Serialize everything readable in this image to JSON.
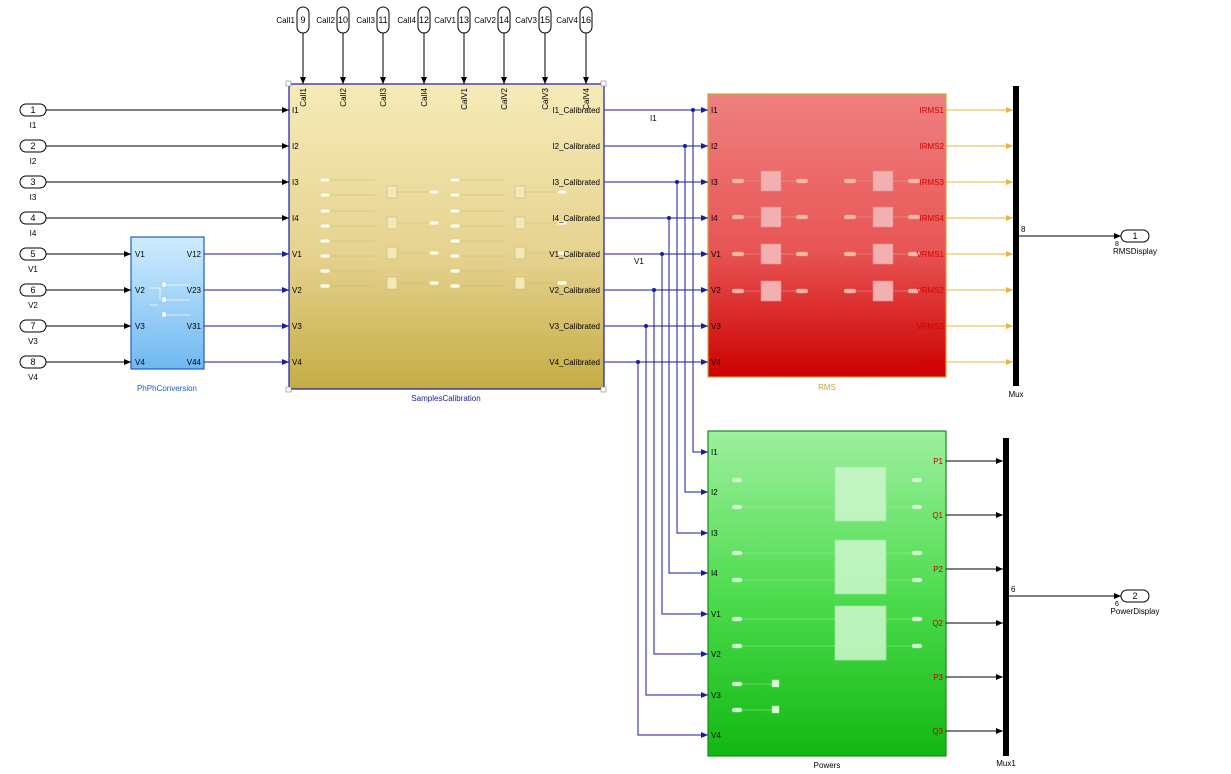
{
  "inports_left": [
    {
      "num": "1",
      "label": "I1"
    },
    {
      "num": "2",
      "label": "I2"
    },
    {
      "num": "3",
      "label": "I3"
    },
    {
      "num": "4",
      "label": "I4"
    },
    {
      "num": "5",
      "label": "V1"
    },
    {
      "num": "6",
      "label": "V2"
    },
    {
      "num": "7",
      "label": "V3"
    },
    {
      "num": "8",
      "label": "V4"
    }
  ],
  "inports_top": [
    {
      "num": "9",
      "label": "CalI1"
    },
    {
      "num": "10",
      "label": "CalI2"
    },
    {
      "num": "11",
      "label": "CalI3"
    },
    {
      "num": "12",
      "label": "CalI4"
    },
    {
      "num": "13",
      "label": "CalV1"
    },
    {
      "num": "14",
      "label": "CalV2"
    },
    {
      "num": "15",
      "label": "CalV3"
    },
    {
      "num": "16",
      "label": "CalV4"
    }
  ],
  "phph": {
    "name": "PhPhConversion",
    "inputs": [
      "V1",
      "V2",
      "V3",
      "V4"
    ],
    "outputs": [
      "V12",
      "V23",
      "V31",
      "V44"
    ]
  },
  "calib": {
    "name": "SamplesCalibration",
    "top_inputs": [
      "CalI1",
      "CalI2",
      "CalI3",
      "CalI4",
      "CalV1",
      "CalV2",
      "CalV3",
      "CalV4"
    ],
    "inputs": [
      "I1",
      "I2",
      "I3",
      "I4",
      "V1",
      "V2",
      "V3",
      "V4"
    ],
    "outputs": [
      "I1_Calibrated",
      "I2_Calibrated",
      "I3_Calibrated",
      "I4_Calibrated",
      "V1_Calibrated",
      "V2_Calibrated",
      "V3_Calibrated",
      "V4_Calibrated"
    ]
  },
  "rms": {
    "name": "RMS",
    "inputs": [
      "I1",
      "I2",
      "I3",
      "I4",
      "V1",
      "V2",
      "V3",
      "V4"
    ],
    "outputs": [
      "IRMS1",
      "IRMS2",
      "IRMS3",
      "IRMS4",
      "VRMS1",
      "VRMS2",
      "VRMS3",
      "VRMS4"
    ]
  },
  "powers": {
    "name": "Powers",
    "inputs": [
      "I1",
      "I2",
      "I3",
      "I4",
      "V1",
      "V2",
      "V3",
      "V4"
    ],
    "outputs": [
      "P1",
      "Q1",
      "P2",
      "Q2",
      "P3",
      "Q3"
    ]
  },
  "mux": {
    "name": "Mux",
    "width": "8"
  },
  "mux1": {
    "name": "Mux1",
    "width": "6"
  },
  "outports": [
    {
      "num": "1",
      "label": "RMSDisplay",
      "width": "8"
    },
    {
      "num": "2",
      "label": "PowerDisplay",
      "width": "6"
    }
  ],
  "signal_labels": {
    "i1": "I1",
    "v1": "V1"
  },
  "colors": {
    "line_black": "#000000",
    "line_blue": "#1a1aa6",
    "line_orange": "#e8b43a",
    "rms_port_text": "#d40000",
    "powers_port_text": "#c00000",
    "calib_name": "#1a1aa6",
    "phph_name": "#1a5fd0",
    "rms_name": "#c9a63a",
    "powers_name": "#000000"
  }
}
